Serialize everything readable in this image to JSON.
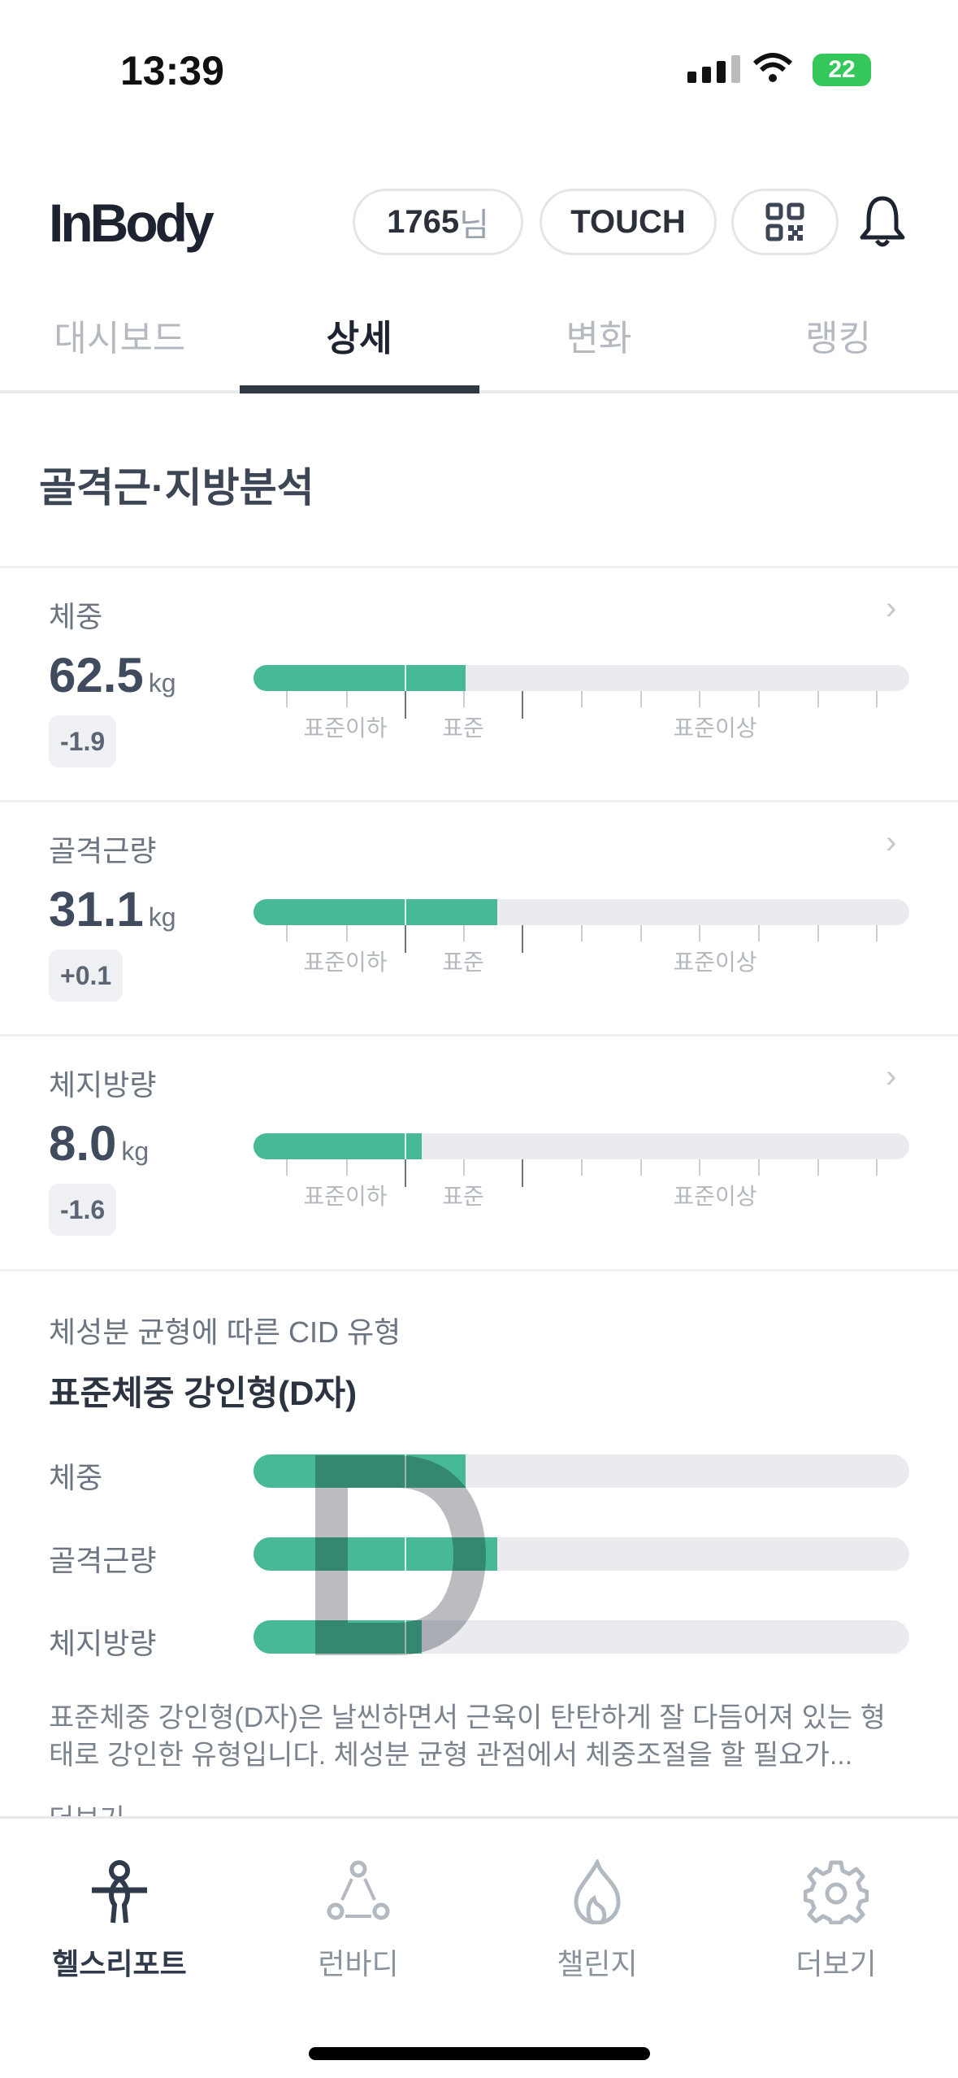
{
  "status_bar": {
    "time": "13:39",
    "battery": "22"
  },
  "header": {
    "logo": "InBody",
    "user_number": "1765",
    "user_suffix": "님",
    "touch_label": "TOUCH",
    "qr_icon": "qr-code-icon",
    "bell_icon": "bell-icon"
  },
  "tabs": [
    {
      "label": "대시보드",
      "active": false
    },
    {
      "label": "상세",
      "active": true
    },
    {
      "label": "변화",
      "active": false
    },
    {
      "label": "랭킹",
      "active": false
    }
  ],
  "section": {
    "title": "골격근·지방분석"
  },
  "scale_labels": {
    "below": "표준이하",
    "standard": "표준",
    "above": "표준이상"
  },
  "items": [
    {
      "label": "체중",
      "value": "62.5",
      "unit": "kg",
      "delta": "-1.9",
      "fill_fraction": 0.323
    },
    {
      "label": "골격근량",
      "value": "31.1",
      "unit": "kg",
      "delta": "+0.1",
      "fill_fraction": 0.372
    },
    {
      "label": "체지방량",
      "value": "8.0",
      "unit": "kg",
      "delta": "-1.6",
      "fill_fraction": 0.257
    }
  ],
  "cid": {
    "subtitle": "체성분 균형에 따른 CID 유형",
    "title": "표준체중 강인형(D자)",
    "letter": "D",
    "rows": [
      {
        "label": "체중",
        "fill_fraction": 0.323
      },
      {
        "label": "골격근량",
        "fill_fraction": 0.372
      },
      {
        "label": "체지방량",
        "fill_fraction": 0.257
      }
    ],
    "description": "표준체중 강인형(D자)은 날씬하면서 근육이 탄탄하게 잘 다듬어져 있는 형태로 강인한 유형입니다. 체성분 균형 관점에서 체중조절을 할 필요가...",
    "next_label": "더보기"
  },
  "colors": {
    "accent": "#48b996",
    "track": "#e9ebef"
  },
  "bottom_nav": [
    {
      "label": "헬스리포트",
      "icon": "person-icon",
      "active": true
    },
    {
      "label": "런바디",
      "icon": "share-nodes-icon",
      "active": false
    },
    {
      "label": "챌린지",
      "icon": "flame-icon",
      "active": false
    },
    {
      "label": "더보기",
      "icon": "gear-icon",
      "active": false
    }
  ]
}
